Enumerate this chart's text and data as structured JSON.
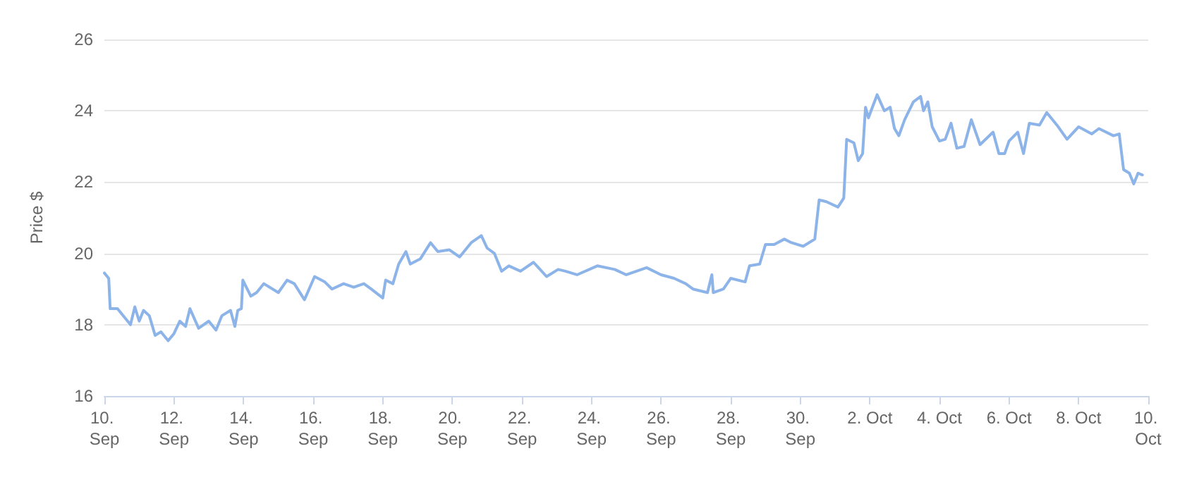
{
  "chart_data": {
    "type": "line",
    "ylabel": "Price $",
    "xlim": [
      "--09-10",
      "--10-10"
    ],
    "ylim": [
      16,
      26
    ],
    "yticks": [
      16,
      18,
      20,
      22,
      24,
      26
    ],
    "xticks": [
      {
        "value": "--09-10",
        "label": "10. Sep"
      },
      {
        "value": "--09-12",
        "label": "12. Sep"
      },
      {
        "value": "--09-14",
        "label": "14. Sep"
      },
      {
        "value": "--09-16",
        "label": "16. Sep"
      },
      {
        "value": "--09-18",
        "label": "18. Sep"
      },
      {
        "value": "--09-20",
        "label": "20. Sep"
      },
      {
        "value": "--09-22",
        "label": "22. Sep"
      },
      {
        "value": "--09-24",
        "label": "24. Sep"
      },
      {
        "value": "--09-26",
        "label": "26. Sep"
      },
      {
        "value": "--09-28",
        "label": "28. Sep"
      },
      {
        "value": "--09-30",
        "label": "30. Sep"
      },
      {
        "value": "--10-02",
        "label": "2. Oct"
      },
      {
        "value": "--10-04",
        "label": "4. Oct"
      },
      {
        "value": "--10-06",
        "label": "6. Oct"
      },
      {
        "value": "--10-08",
        "label": "8. Oct"
      },
      {
        "value": "--10-10",
        "label": "10. Oct"
      }
    ],
    "grid": "y",
    "marker": "none",
    "line_style": "solid",
    "series": [
      {
        "color": "#8db4e8",
        "x": [
          "--09-10T00:00",
          "--09-10T03:00",
          "--09-10T04:00",
          "--09-10T09:00",
          "--09-10T18:00",
          "--09-10T21:00",
          "--09-11T00:00",
          "--09-11T03:00",
          "--09-11T07:00",
          "--09-11T11:00",
          "--09-11T15:00",
          "--09-11T20:00",
          "--09-12T00:00",
          "--09-12T04:00",
          "--09-12T08:00",
          "--09-12T11:00",
          "--09-12T17:00",
          "--09-13T00:00",
          "--09-13T05:00",
          "--09-13T09:00",
          "--09-13T15:00",
          "--09-13T18:00",
          "--09-13T20:00",
          "--09-13T22:30",
          "--09-13T23:30",
          "--09-14T05:00",
          "--09-14T09:00",
          "--09-14T14:00",
          "--09-15T00:00",
          "--09-15T06:00",
          "--09-15T11:00",
          "--09-15T18:00",
          "--09-16T01:00",
          "--09-16T08:00",
          "--09-16T13:00",
          "--09-16T21:00",
          "--09-17T04:00",
          "--09-17T11:00",
          "--09-17T16:00",
          "--09-18T00:00",
          "--09-18T02:00",
          "--09-18T07:00",
          "--09-18T11:00",
          "--09-18T16:00",
          "--09-18T19:00",
          "--09-19T02:00",
          "--09-19T09:00",
          "--09-19T14:00",
          "--09-19T22:00",
          "--09-20T05:00",
          "--09-20T13:00",
          "--09-20T20:00",
          "--09-21T00:00",
          "--09-21T05:00",
          "--09-21T10:00",
          "--09-21T15:00",
          "--09-21T23:00",
          "--09-22T08:00",
          "--09-22T17:00",
          "--09-23T01:00",
          "--09-23T06:00",
          "--09-23T14:00",
          "--09-24T04:00",
          "--09-24T16:00",
          "--09-25T00:00",
          "--09-25T14:00",
          "--09-26T00:00",
          "--09-26T09:00",
          "--09-26T17:00",
          "--09-26T22:00",
          "--09-27T08:00",
          "--09-27T11:00",
          "--09-27T12:00",
          "--09-27T19:00",
          "--09-28T00:00",
          "--09-28T10:00",
          "--09-28T13:00",
          "--09-28T20:00",
          "--09-29T00:00",
          "--09-29T06:00",
          "--09-29T13:00",
          "--09-29T18:00",
          "--09-30T02:00",
          "--09-30T10:00",
          "--09-30T13:00",
          "--09-30T18:00",
          "--10-01T02:00",
          "--10-01T06:00",
          "--10-01T08:00",
          "--10-01T13:00",
          "--10-01T16:00",
          "--10-01T19:00",
          "--10-01T21:00",
          "--10-01T23:00",
          "--10-02T05:00",
          "--10-02T10:00",
          "--10-02T14:00",
          "--10-02T17:00",
          "--10-02T20:00",
          "--10-03T00:00",
          "--10-03T06:00",
          "--10-03T11:00",
          "--10-03T13:00",
          "--10-03T16:00",
          "--10-03T19:00",
          "--10-04T00:00",
          "--10-04T04:00",
          "--10-04T08:00",
          "--10-04T12:00",
          "--10-04T17:00",
          "--10-04T22:00",
          "--10-05T04:00",
          "--10-05T13:00",
          "--10-05T17:00",
          "--10-05T21:00",
          "--10-06T00:00",
          "--10-06T06:00",
          "--10-06T10:00",
          "--10-06T14:00",
          "--10-06T21:00",
          "--10-07T02:00",
          "--10-07T09:00",
          "--10-07T16:00",
          "--10-08T00:00",
          "--10-08T09:00",
          "--10-08T14:00",
          "--10-09T00:00",
          "--10-09T04:00",
          "--10-09T07:00",
          "--10-09T11:00",
          "--10-09T14:00",
          "--10-09T17:00",
          "--10-09T20:00"
        ],
        "values": [
          19.45,
          19.3,
          18.45,
          18.45,
          18.0,
          18.5,
          18.1,
          18.4,
          18.25,
          17.7,
          17.8,
          17.55,
          17.75,
          18.1,
          17.95,
          18.45,
          17.9,
          18.1,
          17.85,
          18.25,
          18.4,
          17.95,
          18.4,
          18.45,
          19.25,
          18.8,
          18.9,
          19.15,
          18.9,
          19.25,
          19.15,
          18.7,
          19.35,
          19.2,
          19.0,
          19.15,
          19.05,
          19.15,
          19.0,
          18.75,
          19.25,
          19.15,
          19.7,
          20.05,
          19.7,
          19.85,
          20.3,
          20.05,
          20.1,
          19.9,
          20.3,
          20.5,
          20.15,
          20.0,
          19.5,
          19.65,
          19.5,
          19.75,
          19.35,
          19.55,
          19.5,
          19.4,
          19.65,
          19.55,
          19.4,
          19.6,
          19.4,
          19.3,
          19.15,
          19.0,
          18.9,
          19.4,
          18.9,
          19.0,
          19.3,
          19.2,
          19.65,
          19.7,
          20.25,
          20.25,
          20.4,
          20.3,
          20.2,
          20.4,
          21.5,
          21.45,
          21.3,
          21.55,
          23.2,
          23.1,
          22.6,
          22.8,
          24.1,
          23.8,
          24.45,
          24.0,
          24.1,
          23.5,
          23.3,
          23.75,
          24.25,
          24.4,
          24.0,
          24.25,
          23.55,
          23.15,
          23.2,
          23.65,
          22.95,
          23.0,
          23.75,
          23.05,
          23.4,
          22.8,
          22.8,
          23.15,
          23.4,
          22.8,
          23.65,
          23.6,
          23.95,
          23.6,
          23.2,
          23.55,
          23.35,
          23.5,
          23.3,
          23.35,
          22.35,
          22.25,
          21.95,
          22.25,
          22.2
        ]
      }
    ]
  }
}
